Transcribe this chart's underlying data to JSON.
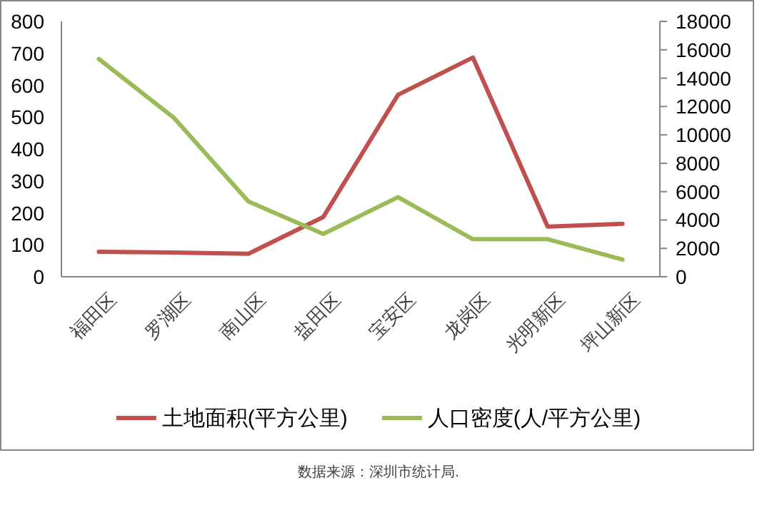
{
  "chart_data": {
    "type": "line",
    "categories": [
      "福田区",
      "罗湖区",
      "南山区",
      "盐田区",
      "宝安区",
      "龙岗区",
      "光明新区",
      "坪山新区"
    ],
    "series": [
      {
        "name": "土地面积(平方公里)",
        "color": "#c0504d",
        "values": [
          78,
          76,
          72,
          187,
          570,
          687,
          157,
          166
        ]
      },
      {
        "name": "人口密度(人/平方公里)",
        "color": "#9bbb59",
        "axis": "y2",
        "values": [
          15350,
          11220,
          5300,
          3020,
          5610,
          2650,
          2650,
          1210
        ]
      }
    ],
    "ylim": [
      0,
      800
    ],
    "yticks": [
      0,
      100,
      200,
      300,
      400,
      500,
      600,
      700,
      800
    ],
    "y2lim": [
      0,
      18000
    ],
    "y2ticks": [
      0,
      2000,
      4000,
      6000,
      8000,
      10000,
      12000,
      14000,
      16000,
      18000
    ],
    "legend": "bottom",
    "grid": false,
    "annotations": [
      "数据来源：深圳市统计局."
    ]
  }
}
